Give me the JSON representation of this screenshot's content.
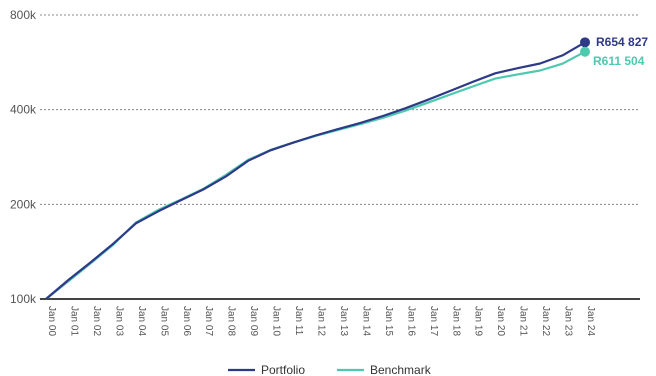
{
  "chart_data": {
    "type": "line",
    "y_scale": "log",
    "ylim": [
      100000,
      800000
    ],
    "y_ticks": [
      {
        "value": 100000,
        "label": "100k"
      },
      {
        "value": 200000,
        "label": "200k"
      },
      {
        "value": 400000,
        "label": "400k"
      },
      {
        "value": 800000,
        "label": "800k"
      }
    ],
    "grid": "horizontal dotted",
    "x": [
      "Jan 00",
      "Jan 01",
      "Jan 02",
      "Jan 03",
      "Jan 04",
      "Jan 05",
      "Jan 06",
      "Jan 07",
      "Jan 08",
      "Jan 09",
      "Jan 10",
      "Jan 11",
      "Jan 12",
      "Jan 13",
      "Jan 14",
      "Jan 15",
      "Jan 16",
      "Jan 17",
      "Jan 18",
      "Jan 19",
      "Jan 20",
      "Jan 21",
      "Jan 22",
      "Jan 23",
      "Jan 24"
    ],
    "series": [
      {
        "name": "Portfolio",
        "color": "#2e3a87",
        "end_label": "R654 827",
        "values": [
          100000,
          115000,
          131000,
          150000,
          174000,
          190000,
          206000,
          223000,
          245000,
          275000,
          297000,
          314000,
          331000,
          347000,
          363000,
          382000,
          404000,
          430000,
          459000,
          490000,
          522000,
          542000,
          561000,
          595000,
          654827
        ]
      },
      {
        "name": "Benchmark",
        "color": "#4dc9b0",
        "end_label": "R611 504",
        "values": [
          100000,
          114000,
          130000,
          149000,
          175000,
          192000,
          207000,
          224000,
          248000,
          277000,
          298000,
          314000,
          330000,
          345000,
          360000,
          377000,
          397000,
          421000,
          447000,
          474000,
          502000,
          518000,
          533000,
          560000,
          611504
        ]
      }
    ],
    "legend_position": "bottom-center"
  }
}
